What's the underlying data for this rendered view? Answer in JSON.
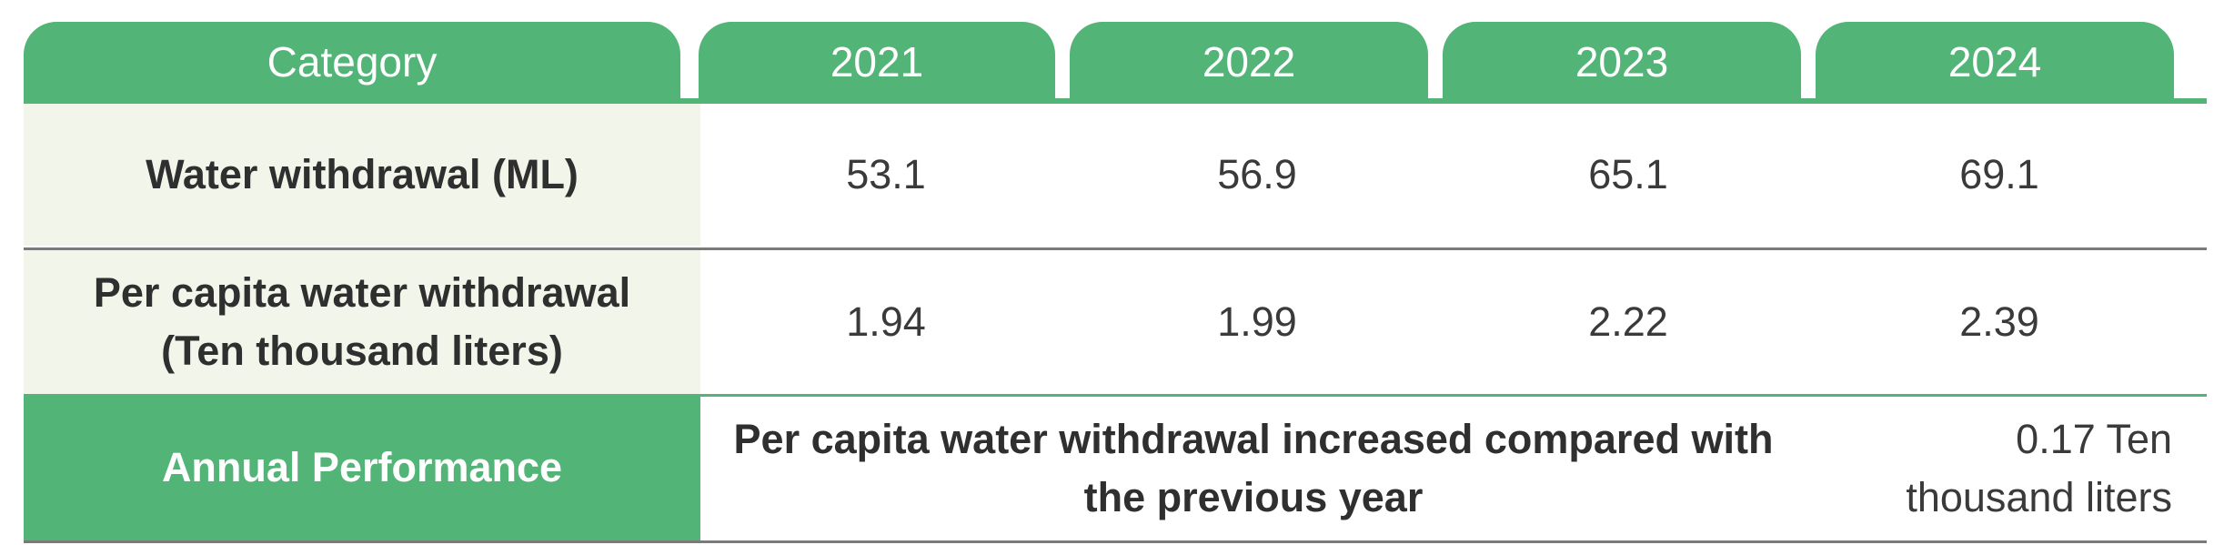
{
  "header": {
    "category": "Category",
    "years": [
      "2021",
      "2022",
      "2023",
      "2024"
    ]
  },
  "rows": [
    {
      "label": "Water withdrawal (ML)",
      "values": [
        "53.1",
        "56.9",
        "65.1",
        "69.1"
      ]
    },
    {
      "label_line1": "Per capita water withdrawal",
      "label_line2": "(Ten thousand liters)",
      "values": [
        "1.94",
        "1.99",
        "2.22",
        "2.39"
      ]
    }
  ],
  "performance": {
    "label": "Annual Performance",
    "text_line1": "Per capita water withdrawal increased compared with",
    "text_line2": "the previous year",
    "value_line1": "0.17 Ten",
    "value_line2": "thousand liters"
  },
  "colors": {
    "header_green": "#52b477",
    "label_bg": "#f1f5ea"
  }
}
